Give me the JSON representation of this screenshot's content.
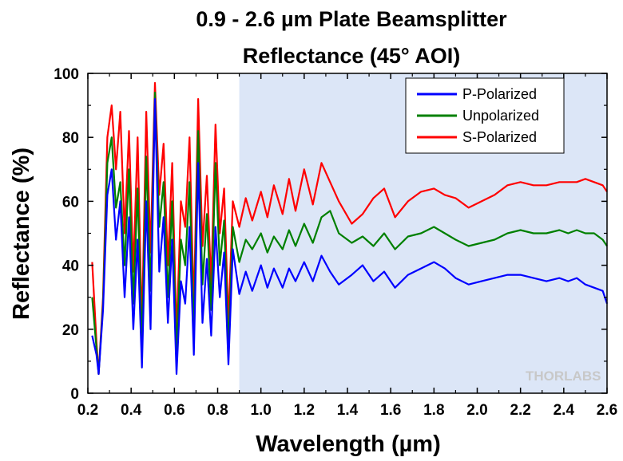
{
  "chart_data": {
    "type": "line",
    "title": "0.9 - 2.6 µm Plate Beamsplitter",
    "subtitle": "Reflectance (45° AOI)",
    "xlabel": "Wavelength (µm)",
    "ylabel": "Reflectance (%)",
    "xlim": [
      0.2,
      2.6
    ],
    "ylim": [
      0,
      100
    ],
    "x_ticks": [
      "0.2",
      "0.4",
      "0.6",
      "0.8",
      "1.0",
      "1.2",
      "1.4",
      "1.6",
      "1.8",
      "2.0",
      "2.2",
      "2.4",
      "2.6"
    ],
    "y_ticks": [
      "0",
      "20",
      "40",
      "60",
      "80",
      "100"
    ],
    "highlight_region": [
      0.9,
      2.6
    ],
    "highlight_color": "#dce6f7",
    "legend_position": "top-right",
    "watermark": "THORLABS",
    "series": [
      {
        "name": "P-Polarized",
        "color": "#0000ff",
        "x": [
          0.22,
          0.24,
          0.25,
          0.27,
          0.29,
          0.31,
          0.33,
          0.35,
          0.37,
          0.39,
          0.41,
          0.43,
          0.45,
          0.47,
          0.49,
          0.51,
          0.53,
          0.55,
          0.57,
          0.59,
          0.61,
          0.63,
          0.65,
          0.67,
          0.69,
          0.71,
          0.73,
          0.75,
          0.77,
          0.79,
          0.81,
          0.83,
          0.85,
          0.87,
          0.9,
          0.93,
          0.96,
          1.0,
          1.03,
          1.06,
          1.1,
          1.13,
          1.16,
          1.2,
          1.24,
          1.28,
          1.32,
          1.36,
          1.42,
          1.47,
          1.52,
          1.57,
          1.62,
          1.68,
          1.74,
          1.8,
          1.85,
          1.9,
          1.96,
          2.02,
          2.08,
          2.14,
          2.2,
          2.26,
          2.32,
          2.38,
          2.42,
          2.46,
          2.5,
          2.54,
          2.58,
          2.6
        ],
        "values": [
          18,
          12,
          6,
          26,
          62,
          70,
          48,
          60,
          30,
          55,
          20,
          48,
          8,
          60,
          20,
          92,
          38,
          55,
          22,
          48,
          6,
          35,
          28,
          52,
          12,
          72,
          22,
          42,
          18,
          52,
          30,
          44,
          9,
          45,
          31,
          38,
          32,
          40,
          33,
          39,
          33,
          39,
          35,
          41,
          35,
          43,
          38,
          34,
          37,
          40,
          35,
          38,
          33,
          37,
          39,
          41,
          39,
          36,
          34,
          35,
          36,
          37,
          37,
          36,
          35,
          36,
          35,
          36,
          34,
          33,
          32,
          28
        ]
      },
      {
        "name": "Unpolarized",
        "color": "#008000",
        "x": [
          0.22,
          0.24,
          0.25,
          0.27,
          0.29,
          0.31,
          0.33,
          0.35,
          0.37,
          0.39,
          0.41,
          0.43,
          0.45,
          0.47,
          0.49,
          0.51,
          0.53,
          0.55,
          0.57,
          0.59,
          0.61,
          0.63,
          0.65,
          0.67,
          0.69,
          0.71,
          0.73,
          0.75,
          0.77,
          0.79,
          0.81,
          0.83,
          0.85,
          0.87,
          0.9,
          0.93,
          0.96,
          1.0,
          1.03,
          1.06,
          1.1,
          1.13,
          1.16,
          1.2,
          1.24,
          1.28,
          1.32,
          1.36,
          1.42,
          1.47,
          1.52,
          1.57,
          1.62,
          1.68,
          1.74,
          1.8,
          1.85,
          1.9,
          1.96,
          2.02,
          2.08,
          2.14,
          2.2,
          2.26,
          2.32,
          2.38,
          2.42,
          2.46,
          2.5,
          2.54,
          2.58,
          2.6
        ],
        "values": [
          30,
          14,
          6,
          28,
          72,
          80,
          58,
          66,
          40,
          70,
          28,
          64,
          14,
          74,
          32,
          94,
          52,
          66,
          30,
          60,
          12,
          48,
          40,
          66,
          18,
          82,
          34,
          56,
          26,
          72,
          40,
          54,
          14,
          52,
          41,
          48,
          45,
          50,
          44,
          49,
          45,
          51,
          46,
          53,
          47,
          55,
          57,
          50,
          47,
          49,
          46,
          50,
          45,
          49,
          50,
          52,
          50,
          48,
          46,
          47,
          48,
          50,
          51,
          50,
          50,
          51,
          50,
          51,
          50,
          50,
          48,
          46
        ]
      },
      {
        "name": "S-Polarized",
        "color": "#ff0000",
        "x": [
          0.22,
          0.24,
          0.25,
          0.27,
          0.29,
          0.31,
          0.33,
          0.35,
          0.37,
          0.39,
          0.41,
          0.43,
          0.45,
          0.47,
          0.49,
          0.51,
          0.53,
          0.55,
          0.57,
          0.59,
          0.61,
          0.63,
          0.65,
          0.67,
          0.69,
          0.71,
          0.73,
          0.75,
          0.77,
          0.79,
          0.81,
          0.83,
          0.85,
          0.87,
          0.9,
          0.93,
          0.96,
          1.0,
          1.03,
          1.06,
          1.1,
          1.13,
          1.16,
          1.2,
          1.24,
          1.28,
          1.32,
          1.36,
          1.42,
          1.47,
          1.52,
          1.57,
          1.62,
          1.68,
          1.74,
          1.8,
          1.85,
          1.9,
          1.96,
          2.02,
          2.08,
          2.14,
          2.2,
          2.26,
          2.32,
          2.38,
          2.42,
          2.46,
          2.5,
          2.54,
          2.58,
          2.6
        ],
        "values": [
          41,
          16,
          6,
          30,
          80,
          90,
          70,
          88,
          50,
          82,
          38,
          80,
          20,
          88,
          44,
          97,
          62,
          78,
          40,
          72,
          18,
          60,
          52,
          80,
          26,
          92,
          46,
          68,
          34,
          84,
          50,
          64,
          22,
          60,
          52,
          61,
          54,
          63,
          55,
          65,
          56,
          67,
          57,
          70,
          59,
          72,
          66,
          60,
          53,
          56,
          61,
          64,
          55,
          60,
          63,
          64,
          62,
          61,
          58,
          60,
          62,
          65,
          66,
          65,
          65,
          66,
          66,
          66,
          67,
          66,
          65,
          63
        ]
      }
    ]
  }
}
